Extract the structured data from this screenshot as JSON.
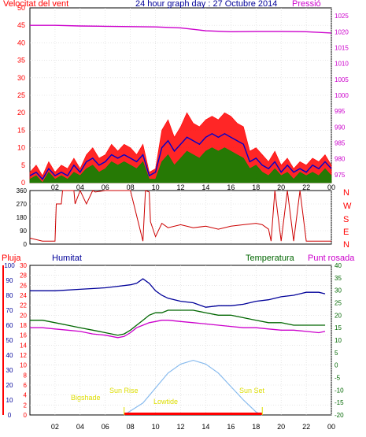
{
  "header": {
    "left_label": "Velocitat del vent",
    "title": "24 hour graph day : 27 Octubre 2014",
    "right_label": "Pressió"
  },
  "wind_dir_letters": [
    "N",
    "W",
    "S",
    "E",
    "N"
  ],
  "lower_labels": {
    "rain": "Pluja",
    "humidity": "Humitat",
    "temperature": "Temperatura",
    "dewpoint": "Punt rosada"
  },
  "sun_labels": {
    "bigshade": "Bigshade",
    "sunrise": "Sun Rise",
    "lowtide": "Lowtide",
    "sunset": "Sun Set"
  },
  "colors": {
    "wind_gust": "#ff0000",
    "wind_avg": "#0000cc",
    "wind_min": "#008800",
    "pressure": "#cc00cc",
    "direction": "#cc0000",
    "humidity": "#000099",
    "temperature": "#006600",
    "dewpoint": "#cc00cc",
    "solar": "#88bbee",
    "rain": "#ff0000",
    "sun_text": "#dddd00"
  },
  "chart_data": [
    {
      "type": "line",
      "title": "24 hour graph day : 27 Octubre 2014",
      "x_ticks": [
        "02",
        "04",
        "06",
        "08",
        "10",
        "12",
        "14",
        "16",
        "18",
        "20",
        "22",
        "00"
      ],
      "x_hours": [
        1,
        23
      ],
      "y_left_label": "Velocitat del vent",
      "y_left_ticks": [
        0,
        5,
        10,
        15,
        20,
        25,
        30,
        35,
        40,
        45,
        50
      ],
      "y_left_lim": [
        0,
        50
      ],
      "y_right_label": "Pressió",
      "y_right_ticks": [
        975,
        980,
        985,
        990,
        995,
        1000,
        1005,
        1010,
        1015,
        1020,
        1025
      ],
      "y_right_lim": [
        972.5,
        1027.5
      ],
      "series": [
        {
          "key": "gust",
          "hours": [
            0,
            0.5,
            1,
            1.5,
            2,
            2.5,
            3,
            3.5,
            4,
            4.5,
            5,
            5.5,
            6,
            6.5,
            7,
            7.5,
            8,
            8.5,
            9,
            9.5,
            10,
            10.5,
            11,
            11.5,
            12,
            12.5,
            13,
            13.5,
            14,
            14.5,
            15,
            15.5,
            16,
            16.5,
            17,
            17.5,
            18,
            18.5,
            19,
            19.5,
            20,
            20.5,
            21,
            21.5,
            22,
            22.5,
            23,
            23.5,
            24
          ],
          "values": [
            3,
            5,
            2,
            6,
            3,
            5,
            4,
            7,
            4,
            8,
            10,
            7,
            8,
            11,
            9,
            11,
            10,
            8,
            11,
            3,
            4,
            15,
            18,
            13,
            16,
            20,
            17,
            16,
            18,
            19,
            18,
            20,
            19,
            17,
            16,
            9,
            10,
            8,
            6,
            9,
            5,
            7,
            4,
            6,
            5,
            7,
            6,
            8,
            5
          ]
        },
        {
          "key": "avg",
          "hours": [
            0,
            0.5,
            1,
            1.5,
            2,
            2.5,
            3,
            3.5,
            4,
            4.5,
            5,
            5.5,
            6,
            6.5,
            7,
            7.5,
            8,
            8.5,
            9,
            9.5,
            10,
            10.5,
            11,
            11.5,
            12,
            12.5,
            13,
            13.5,
            14,
            14.5,
            15,
            15.5,
            16,
            16.5,
            17,
            17.5,
            18,
            18.5,
            19,
            19.5,
            20,
            20.5,
            21,
            21.5,
            22,
            22.5,
            23,
            23.5,
            24
          ],
          "values": [
            2,
            3,
            1,
            4,
            2,
            3,
            2,
            5,
            3,
            6,
            7,
            5,
            6,
            8,
            7,
            8,
            7,
            6,
            8,
            2,
            3,
            10,
            12,
            9,
            11,
            13,
            12,
            11,
            13,
            14,
            13,
            14,
            13,
            12,
            11,
            6,
            7,
            5,
            4,
            6,
            3,
            5,
            3,
            4,
            3,
            5,
            4,
            6,
            4
          ]
        },
        {
          "key": "min",
          "hours": [
            0,
            0.5,
            1,
            1.5,
            2,
            2.5,
            3,
            3.5,
            4,
            4.5,
            5,
            5.5,
            6,
            6.5,
            7,
            7.5,
            8,
            8.5,
            9,
            9.5,
            10,
            10.5,
            11,
            11.5,
            12,
            12.5,
            13,
            13.5,
            14,
            14.5,
            15,
            15.5,
            16,
            16.5,
            17,
            17.5,
            18,
            18.5,
            19,
            19.5,
            20,
            20.5,
            21,
            21.5,
            22,
            22.5,
            23,
            23.5,
            24
          ],
          "values": [
            1,
            2,
            0,
            3,
            1,
            2,
            1,
            3,
            2,
            4,
            5,
            3,
            4,
            6,
            5,
            6,
            5,
            4,
            6,
            1,
            1,
            6,
            8,
            5,
            7,
            9,
            8,
            7,
            9,
            10,
            9,
            10,
            9,
            8,
            7,
            4,
            5,
            3,
            2,
            4,
            2,
            3,
            1,
            3,
            2,
            3,
            2,
            4,
            2
          ]
        },
        {
          "key": "pressure",
          "hours": [
            0,
            2,
            4,
            6,
            8,
            10,
            12,
            14,
            16,
            18,
            20,
            22,
            24
          ],
          "values": [
            1022,
            1022,
            1021.8,
            1021.7,
            1021.6,
            1021.5,
            1021.2,
            1020.3,
            1020.0,
            1020.1,
            1020.1,
            1020.0,
            1019.6
          ]
        }
      ]
    },
    {
      "type": "line",
      "title": "",
      "x_ticks": [
        "02",
        "04",
        "06",
        "08",
        "10",
        "12",
        "14",
        "16",
        "18",
        "20",
        "22",
        "00"
      ],
      "y_ticks": [
        0,
        90,
        180,
        270,
        360
      ],
      "y_lim": [
        0,
        360
      ],
      "series": [
        {
          "key": "direction",
          "hours": [
            0,
            1,
            2,
            2.1,
            2.5,
            2.6,
            3.5,
            3.6,
            4,
            4.5,
            5,
            5.2,
            6,
            7,
            8,
            9,
            9.2,
            9.5,
            9.6,
            10,
            10.5,
            11,
            12,
            13,
            14,
            15,
            16,
            17,
            18,
            18.5,
            19,
            19.2,
            19.5,
            20,
            20.5,
            21,
            21.5,
            22,
            23,
            24
          ],
          "values": [
            40,
            20,
            20,
            270,
            270,
            360,
            360,
            270,
            360,
            270,
            360,
            350,
            360,
            360,
            360,
            20,
            360,
            350,
            150,
            50,
            140,
            110,
            130,
            110,
            120,
            100,
            120,
            130,
            140,
            130,
            100,
            20,
            360,
            20,
            360,
            20,
            360,
            20,
            20,
            20
          ]
        }
      ]
    },
    {
      "type": "line",
      "title": "",
      "x_ticks": [
        "02",
        "04",
        "06",
        "08",
        "10",
        "12",
        "14",
        "16",
        "18",
        "20",
        "22",
        "00"
      ],
      "y_humidity_ticks": [
        0,
        10,
        20,
        30,
        40,
        50,
        60,
        70,
        80,
        90,
        100
      ],
      "y_humidity_lim": [
        0,
        100
      ],
      "y_rain_ticks": [
        0,
        2,
        4,
        6,
        8,
        10,
        12,
        14,
        16,
        18,
        20,
        22,
        24,
        26,
        28,
        30
      ],
      "y_rain_lim": [
        0,
        30
      ],
      "y_temp_ticks": [
        -20,
        -15,
        -10,
        -5,
        0,
        5,
        10,
        15,
        20,
        25,
        30,
        35,
        40
      ],
      "y_temp_lim": [
        -20,
        40
      ],
      "series": [
        {
          "key": "humidity",
          "hours": [
            0,
            2,
            4,
            6,
            7,
            8,
            8.5,
            9,
            9.5,
            10,
            10.5,
            11,
            12,
            13,
            14,
            15,
            16,
            17,
            18,
            19,
            20,
            21,
            22,
            23,
            23.5
          ],
          "values": [
            83,
            83,
            84,
            85,
            86,
            87,
            88,
            91,
            88,
            83,
            80,
            78,
            76,
            75,
            72,
            73,
            73,
            74,
            76,
            77,
            79,
            80,
            82,
            82,
            81
          ]
        },
        {
          "key": "temperature",
          "hours": [
            0,
            1,
            2,
            3,
            4,
            5,
            6,
            7,
            7.5,
            8,
            8.5,
            9,
            9.5,
            10,
            10.5,
            11,
            12,
            13,
            14,
            15,
            16,
            17,
            18,
            19,
            20,
            21,
            22,
            23,
            23.5
          ],
          "values": [
            18,
            18,
            17,
            16,
            15,
            14,
            13,
            12,
            12.5,
            14,
            16,
            18,
            20,
            21,
            21,
            22,
            22,
            22,
            21,
            20,
            20,
            19,
            18,
            17,
            17,
            16,
            16,
            16,
            16
          ]
        },
        {
          "key": "dewpoint",
          "hours": [
            0,
            1,
            2,
            3,
            4,
            5,
            6,
            7,
            7.5,
            8,
            8.5,
            9,
            9.5,
            10,
            10.5,
            11,
            12,
            13,
            14,
            15,
            16,
            17,
            18,
            19,
            20,
            21,
            22,
            23,
            23.5
          ],
          "values": [
            15,
            15,
            14.5,
            14,
            13.5,
            12.5,
            12,
            11,
            11.5,
            13,
            15,
            16,
            17,
            17.5,
            18,
            18,
            17.5,
            17,
            16.5,
            16,
            15.5,
            15,
            15,
            14.5,
            14,
            14,
            13.5,
            13,
            13.5
          ]
        },
        {
          "key": "solar",
          "hours": [
            7.5,
            9,
            10,
            11,
            12,
            13,
            14,
            15,
            16,
            17,
            18,
            18.5
          ],
          "values": [
            0,
            8,
            18,
            28,
            34,
            36.5,
            34,
            28,
            19,
            10,
            2,
            0
          ]
        }
      ]
    }
  ]
}
